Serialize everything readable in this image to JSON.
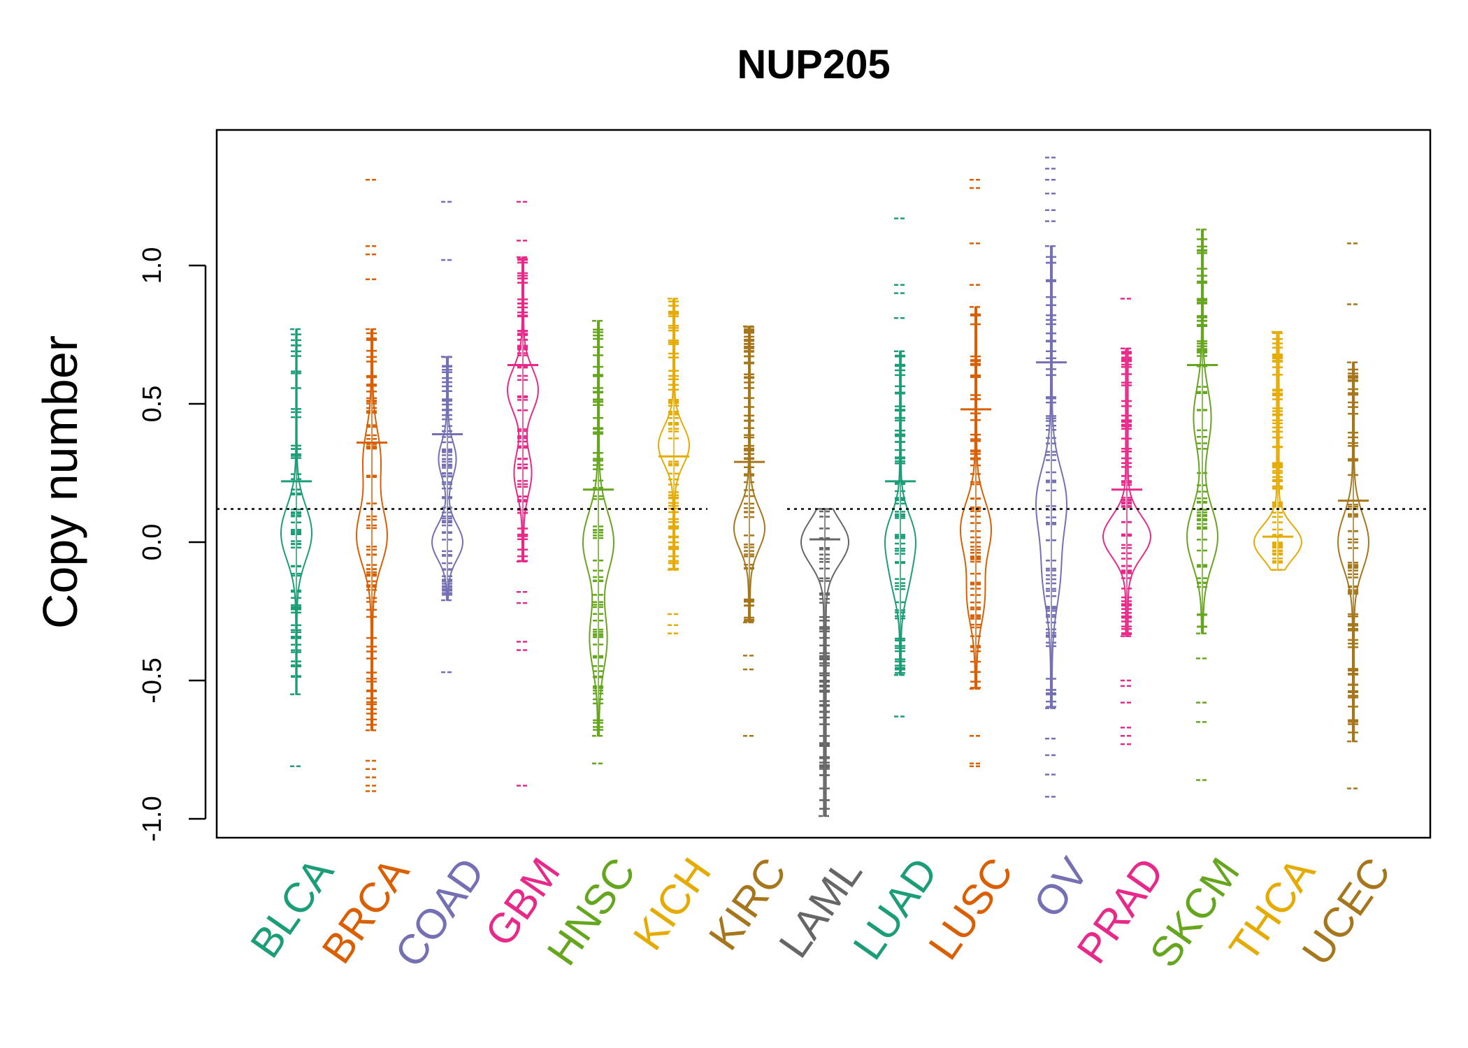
{
  "chart_data": {
    "type": "beanplot",
    "title": "NUP205",
    "xlabel": "",
    "ylabel": "Copy number",
    "ylim": [
      -1.05,
      1.48
    ],
    "yticks": [
      -1.0,
      -0.5,
      0.0,
      0.5,
      1.0
    ],
    "ytick_labels": [
      "-1.0",
      "-0.5",
      "0.0",
      "0.5",
      "1.0"
    ],
    "reference_line": 0.12,
    "grid": false,
    "categories": [
      "BLCA",
      "BRCA",
      "COAD",
      "GBM",
      "HNSC",
      "KICH",
      "KIRC",
      "LAML",
      "LUAD",
      "LUSC",
      "OV",
      "PRAD",
      "SKCM",
      "THCA",
      "UCEC"
    ],
    "colors": [
      "#1B9E77",
      "#D95F02",
      "#7570B3",
      "#E7298A",
      "#66A61E",
      "#E6AB02",
      "#A6761D",
      "#666666",
      "#1B9E77",
      "#D95F02",
      "#7570B3",
      "#E7298A",
      "#66A61E",
      "#E6AB02",
      "#A6761D"
    ],
    "series": [
      {
        "category": "BLCA",
        "mean": 0.22,
        "min": -0.55,
        "max": 0.77,
        "outliers": [
          -0.81
        ],
        "density_peaks": [
          0.05,
          0.0
        ]
      },
      {
        "category": "BRCA",
        "mean": 0.36,
        "min": -0.68,
        "max": 0.77,
        "outliers": [
          -0.79,
          -0.82,
          -0.85,
          -0.88,
          -0.9,
          0.95,
          1.04,
          1.07,
          1.31
        ],
        "density_peaks": [
          0.02,
          0.3
        ]
      },
      {
        "category": "COAD",
        "mean": 0.39,
        "min": -0.21,
        "max": 0.67,
        "outliers": [
          -0.47,
          1.02,
          1.23
        ],
        "density_peaks": [
          0.0,
          0.3
        ]
      },
      {
        "category": "GBM",
        "mean": 0.64,
        "min": -0.07,
        "max": 1.03,
        "outliers": [
          -0.18,
          -0.22,
          -0.36,
          -0.39,
          -0.88,
          1.09,
          1.23
        ],
        "density_peaks": [
          0.55,
          0.25
        ]
      },
      {
        "category": "HNSC",
        "mean": 0.19,
        "min": -0.7,
        "max": 0.8,
        "outliers": [
          -0.8
        ],
        "density_peaks": [
          0.0,
          -0.35
        ]
      },
      {
        "category": "KICH",
        "mean": 0.31,
        "min": -0.1,
        "max": 0.88,
        "outliers": [
          -0.26,
          -0.3,
          -0.33
        ],
        "density_peaks": [
          0.35
        ]
      },
      {
        "category": "KIRC",
        "mean": 0.29,
        "min": -0.29,
        "max": 0.78,
        "outliers": [
          -0.41,
          -0.46,
          -0.7
        ],
        "density_peaks": [
          0.05
        ]
      },
      {
        "category": "LAML",
        "mean": 0.01,
        "min": -0.99,
        "max": 0.12,
        "outliers": [],
        "density_peaks": [
          0.0
        ]
      },
      {
        "category": "LUAD",
        "mean": 0.22,
        "min": -0.48,
        "max": 0.69,
        "outliers": [
          -0.63,
          0.81,
          0.9,
          0.93,
          1.17
        ],
        "density_peaks": [
          0.02,
          -0.13
        ]
      },
      {
        "category": "LUSC",
        "mean": 0.48,
        "min": -0.53,
        "max": 0.85,
        "outliers": [
          -0.7,
          -0.8,
          -0.81,
          0.93,
          1.08,
          1.28,
          1.31
        ],
        "density_peaks": [
          0.05,
          -0.2
        ]
      },
      {
        "category": "OV",
        "mean": 0.65,
        "min": -0.6,
        "max": 1.07,
        "outliers": [
          -0.71,
          -0.77,
          -0.84,
          -0.92,
          1.16,
          1.2,
          1.26,
          1.31,
          1.35,
          1.39
        ],
        "density_peaks": [
          0.15,
          -0.12
        ]
      },
      {
        "category": "PRAD",
        "mean": 0.19,
        "min": -0.34,
        "max": 0.7,
        "outliers": [
          -0.5,
          -0.52,
          -0.58,
          -0.67,
          -0.7,
          -0.73,
          0.88
        ],
        "density_peaks": [
          0.02
        ]
      },
      {
        "category": "SKCM",
        "mean": 0.64,
        "min": -0.33,
        "max": 1.13,
        "outliers": [
          -0.42,
          -0.58,
          -0.65,
          -0.86
        ],
        "density_peaks": [
          0.02,
          0.45
        ]
      },
      {
        "category": "THCA",
        "mean": 0.02,
        "min": -0.1,
        "max": 0.76,
        "outliers": [],
        "density_peaks": [
          0.0
        ]
      },
      {
        "category": "UCEC",
        "mean": 0.15,
        "min": -0.72,
        "max": 0.65,
        "outliers": [
          -0.89,
          0.86,
          1.08
        ],
        "density_peaks": [
          0.0
        ]
      }
    ]
  }
}
